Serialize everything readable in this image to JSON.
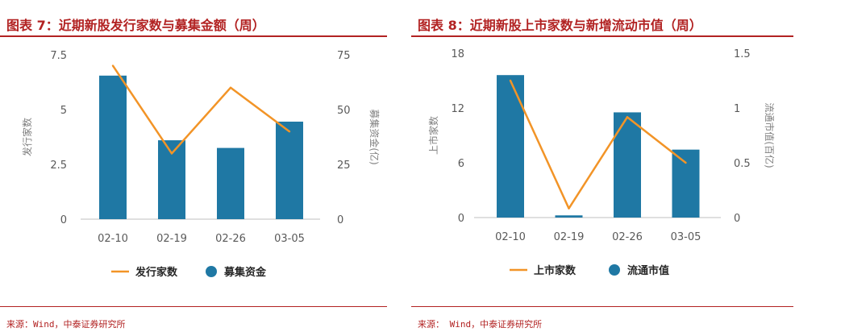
{
  "colors": {
    "bar": "#1f78a4",
    "line": "#f29427",
    "title": "#b22222",
    "grid": "#d9d9d9"
  },
  "left": {
    "title": "图表 7：近期新股发行家数与募集金额（周）",
    "source": "来源：Wind，中泰证券研究所"
  },
  "right": {
    "title": "图表 8：近期新股上市家数与新增流动市值（周）",
    "source": "来源： Wind，中泰证券研究所"
  },
  "chart_data": [
    {
      "type": "bar",
      "categories": [
        "02-10",
        "02-19",
        "02-26",
        "03-05"
      ],
      "series": [
        {
          "name": "发行家数",
          "kind": "line",
          "axis": "left",
          "values": [
            7,
            3,
            6,
            4
          ]
        },
        {
          "name": "募集资金",
          "kind": "bar",
          "axis": "right",
          "values": [
            65.5,
            36,
            32.5,
            44.5
          ]
        }
      ],
      "ylabel": "发行家数",
      "y2label": "募集资金(亿)",
      "ylim": [
        0,
        7.5
      ],
      "y2lim": [
        0,
        75
      ],
      "yticks": [
        "0",
        "2.5",
        "5",
        "7.5"
      ],
      "y2ticks": [
        "0",
        "25",
        "50",
        "75"
      ],
      "grid": false,
      "legend": "bottom"
    },
    {
      "type": "bar",
      "categories": [
        "02-10",
        "02-19",
        "02-26",
        "03-05"
      ],
      "series": [
        {
          "name": "上市家数",
          "kind": "line",
          "axis": "left",
          "values": [
            15,
            1,
            11,
            6
          ]
        },
        {
          "name": "流通市值",
          "kind": "bar",
          "axis": "right",
          "values": [
            1.3,
            0.02,
            0.96,
            0.62
          ]
        }
      ],
      "ylabel": "上市家数",
      "y2label": "流通市值(百亿)",
      "ylim": [
        0,
        18
      ],
      "y2lim": [
        0,
        1.5
      ],
      "yticks": [
        "0",
        "6",
        "12",
        "18"
      ],
      "y2ticks": [
        "0",
        "0.5",
        "1",
        "1.5"
      ],
      "grid": false,
      "legend": "bottom"
    }
  ]
}
